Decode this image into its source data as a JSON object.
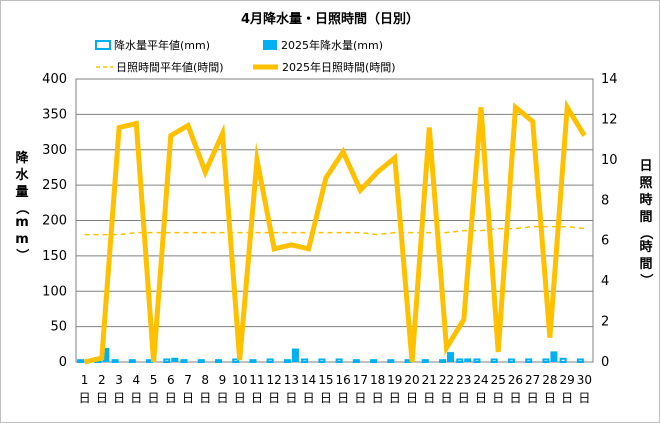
{
  "chart_data": {
    "type": "bar+line",
    "title": "4月降水量・日照時間（日別）",
    "categories": [
      "1",
      "2",
      "3",
      "4",
      "5",
      "6",
      "7",
      "8",
      "9",
      "10",
      "11",
      "12",
      "13",
      "14",
      "15",
      "16",
      "17",
      "18",
      "19",
      "20",
      "21",
      "22",
      "23",
      "24",
      "25",
      "26",
      "27",
      "28",
      "29",
      "30"
    ],
    "category_suffix": "日",
    "left_axis": {
      "label": "降水量（mm）",
      "ylim": [
        0,
        400
      ],
      "ticks": [
        0,
        50,
        100,
        150,
        200,
        250,
        300,
        350,
        400
      ]
    },
    "right_axis": {
      "label": "日照時間（時間）",
      "ylim": [
        0,
        14
      ],
      "ticks": [
        0,
        2,
        4,
        6,
        8,
        10,
        12,
        14
      ]
    },
    "series": [
      {
        "name": "降水量平年値(mm)",
        "kind": "bar",
        "axis": "left",
        "color": "#00b0f0",
        "style": "outline",
        "values": [
          4,
          4,
          4,
          4,
          4,
          5,
          4,
          4,
          4,
          5,
          4,
          5,
          4,
          5,
          5,
          5,
          4,
          4,
          4,
          4,
          4,
          4,
          5,
          5,
          5,
          5,
          5,
          5,
          6,
          5
        ]
      },
      {
        "name": "2025年降水量(mm)",
        "kind": "bar",
        "axis": "left",
        "color": "#00b0f0",
        "style": "filled",
        "values": [
          4,
          20,
          0,
          0,
          0,
          6,
          0,
          0,
          0,
          0,
          0,
          0,
          19,
          0,
          0,
          0,
          0,
          0,
          0,
          0,
          0,
          14,
          5,
          0,
          0,
          0,
          0,
          15,
          0,
          0
        ]
      },
      {
        "name": "日照時間平年値(時間)",
        "kind": "line",
        "axis": "right",
        "color": "#ffc000",
        "style": "dashed",
        "values": [
          6.3,
          6.3,
          6.3,
          6.4,
          6.4,
          6.4,
          6.4,
          6.4,
          6.4,
          6.4,
          6.4,
          6.4,
          6.4,
          6.4,
          6.4,
          6.4,
          6.4,
          6.3,
          6.4,
          6.4,
          6.4,
          6.4,
          6.5,
          6.5,
          6.6,
          6.6,
          6.7,
          6.7,
          6.7,
          6.6
        ]
      },
      {
        "name": "2025年日照時間(時間)",
        "kind": "line",
        "axis": "right",
        "color": "#ffc000",
        "style": "solid",
        "values": [
          0,
          0.2,
          11.6,
          11.8,
          0,
          11.2,
          11.7,
          9.4,
          11.3,
          0.1,
          10,
          5.6,
          5.8,
          5.6,
          9.1,
          10.4,
          8.5,
          9.4,
          10.1,
          0,
          11.6,
          0.7,
          2.1,
          12.6,
          0.5,
          12.6,
          11.9,
          1.2,
          12.6,
          11.2
        ]
      }
    ],
    "grid": true,
    "legend": "top"
  }
}
